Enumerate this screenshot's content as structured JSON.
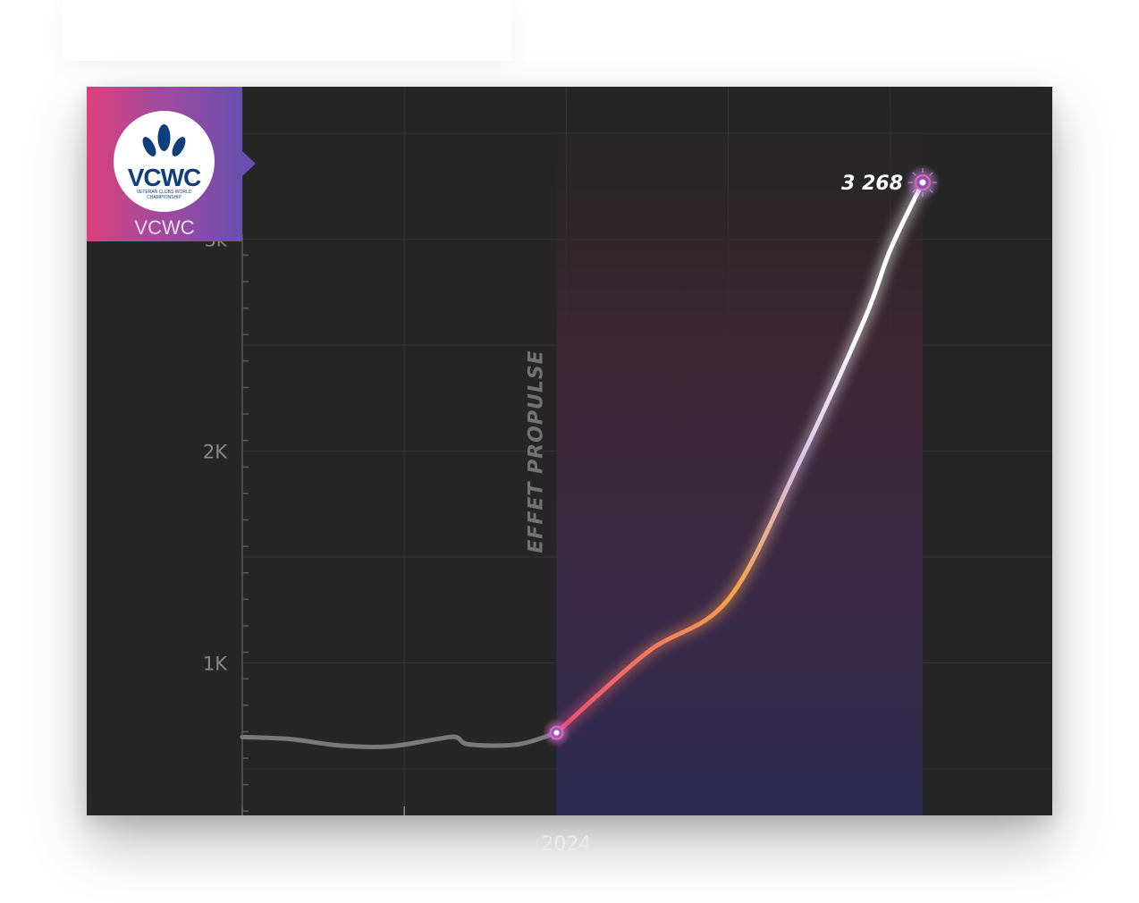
{
  "brand": {
    "logo_text": "VCWC",
    "logo_subtitle": "VETERAN CLUBS WORLD CHAMPIONSHIP",
    "name": "VCWC"
  },
  "colors": {
    "background": "#262626",
    "grid": "#363636",
    "history_line": "#7a7a7a",
    "gradient": [
      "#e8457a",
      "#f5a04a",
      "#d8c0e8",
      "#ffffff"
    ],
    "brand_gradient": [
      "#dd3f7c",
      "#6a4fb0"
    ]
  },
  "chart_data": {
    "type": "line",
    "title": "",
    "xlabel": "",
    "ylabel": "",
    "y_ticks": [
      {
        "value": 1000,
        "label": "1K"
      },
      {
        "value": 2000,
        "label": "2K"
      },
      {
        "value": 3000,
        "label": "3k"
      }
    ],
    "x_ticks": [
      {
        "value": 2024,
        "label": "2024"
      }
    ],
    "x_gridlines": [
      2023,
      2023.5,
      2024,
      2024.5,
      2025
    ],
    "xlim": [
      2023,
      2025.5
    ],
    "ylim": [
      280,
      3720
    ],
    "grid": true,
    "series": [
      {
        "segment": "before",
        "points": [
          [
            2023.0,
            650
          ],
          [
            2023.15,
            640
          ],
          [
            2023.3,
            610
          ],
          [
            2023.45,
            605
          ],
          [
            2023.6,
            640
          ],
          [
            2023.66,
            650
          ],
          [
            2023.7,
            615
          ],
          [
            2023.85,
            615
          ],
          [
            2023.97,
            670
          ]
        ]
      },
      {
        "segment": "after",
        "points": [
          [
            2023.97,
            670
          ],
          [
            2024.25,
            1050
          ],
          [
            2024.5,
            1300
          ],
          [
            2024.72,
            1950
          ],
          [
            2024.92,
            2620
          ],
          [
            2025.0,
            2950
          ],
          [
            2025.1,
            3268
          ]
        ]
      }
    ],
    "annotation": {
      "text": "EFFET PROPULSE",
      "x": 2023.97
    },
    "highlight": {
      "x": 2025.1,
      "value": 3268,
      "label": "3 268"
    }
  }
}
